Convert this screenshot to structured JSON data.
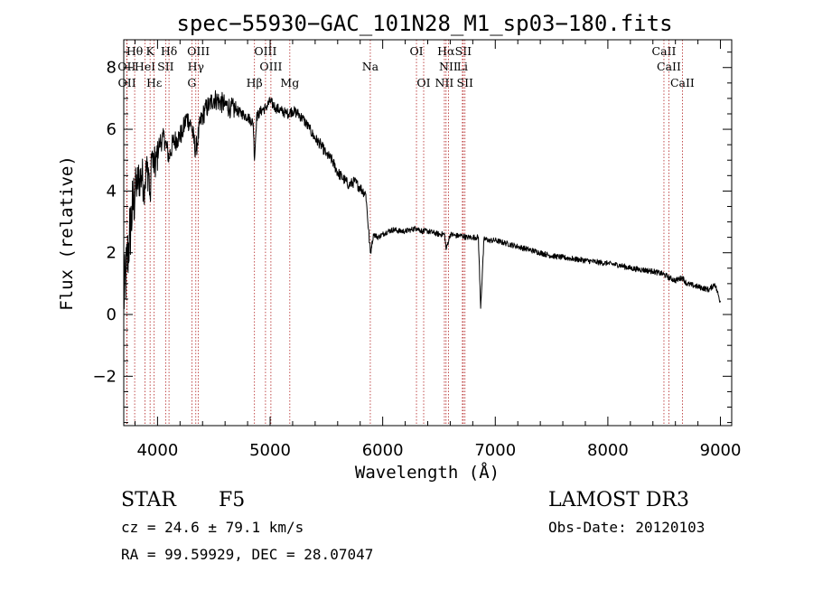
{
  "chart_data": {
    "type": "line",
    "title": "spec−55930−GAC_101N28_M1_sp03−180.fits",
    "xlabel": "Wavelength (Å)",
    "ylabel": "Flux (relative)",
    "xlim": [
      3700,
      9100
    ],
    "ylim": [
      -3.6,
      8.9
    ],
    "xticks": [
      4000,
      5000,
      6000,
      7000,
      8000,
      9000
    ],
    "xtick_labels": [
      "4000",
      "5000",
      "6000",
      "7000",
      "8000",
      "9000"
    ],
    "yticks": [
      -2,
      0,
      2,
      4,
      6,
      8
    ],
    "ytick_labels": [
      "−2",
      "0",
      "2",
      "4",
      "6",
      "8"
    ],
    "series": [
      {
        "name": "flux",
        "x": [
          3700,
          3750,
          3780,
          3800,
          3820,
          3840,
          3860,
          3880,
          3900,
          3920,
          3934,
          3950,
          3968,
          3990,
          4020,
          4060,
          4102,
          4140,
          4180,
          4220,
          4260,
          4300,
          4340,
          4380,
          4420,
          4460,
          4500,
          4550,
          4600,
          4650,
          4700,
          4750,
          4800,
          4850,
          4861,
          4880,
          4920,
          4960,
          5000,
          5050,
          5100,
          5150,
          5200,
          5250,
          5300,
          5350,
          5400,
          5450,
          5500,
          5550,
          5600,
          5650,
          5700,
          5750,
          5800,
          5850,
          5890,
          5920,
          5960,
          6000,
          6050,
          6100,
          6150,
          6200,
          6250,
          6300,
          6350,
          6400,
          6450,
          6500,
          6550,
          6563,
          6600,
          6650,
          6700,
          6750,
          6800,
          6850,
          6870,
          6900,
          6950,
          7000,
          7100,
          7200,
          7300,
          7400,
          7500,
          7600,
          7700,
          7800,
          7900,
          8000,
          8100,
          8200,
          8300,
          8400,
          8498,
          8542,
          8600,
          8662,
          8700,
          8800,
          8900,
          8950,
          9000
        ],
        "y": [
          0.5,
          2.5,
          3.5,
          4.0,
          4.3,
          4.4,
          4.5,
          4.2,
          4.6,
          4.7,
          3.8,
          5.2,
          4.6,
          5.1,
          5.6,
          5.7,
          5.1,
          5.6,
          5.7,
          5.9,
          6.4,
          6.1,
          5.3,
          6.2,
          6.6,
          6.8,
          7.0,
          6.9,
          6.8,
          6.7,
          6.6,
          6.5,
          6.4,
          6.2,
          5.0,
          6.4,
          6.6,
          6.7,
          6.9,
          6.7,
          6.6,
          6.5,
          6.6,
          6.5,
          6.3,
          6.0,
          5.7,
          5.5,
          5.2,
          5.0,
          4.6,
          4.4,
          4.2,
          4.3,
          4.1,
          3.9,
          2.0,
          2.6,
          2.5,
          2.6,
          2.7,
          2.75,
          2.7,
          2.7,
          2.75,
          2.8,
          2.7,
          2.7,
          2.65,
          2.6,
          2.6,
          2.1,
          2.6,
          2.55,
          2.55,
          2.5,
          2.5,
          2.5,
          0.2,
          2.45,
          2.4,
          2.4,
          2.3,
          2.2,
          2.1,
          2.0,
          1.9,
          1.85,
          1.8,
          1.75,
          1.7,
          1.65,
          1.6,
          1.5,
          1.45,
          1.4,
          1.3,
          1.2,
          1.1,
          1.2,
          1.0,
          0.9,
          0.8,
          1.0,
          0.4
        ]
      }
    ],
    "spectral_lines": [
      {
        "label": "Hθ",
        "x": 3797,
        "row": 0
      },
      {
        "label": "K",
        "x": 3934,
        "row": 0
      },
      {
        "label": "Hδ",
        "x": 4102,
        "row": 0
      },
      {
        "label": "OIII",
        "x": 4363,
        "row": 0
      },
      {
        "label": "OIII",
        "x": 4959,
        "row": 0
      },
      {
        "label": "OI",
        "x": 6300,
        "row": 0
      },
      {
        "label": "Hα",
        "x": 6563,
        "row": 0
      },
      {
        "label": "SII",
        "x": 6716,
        "row": 0
      },
      {
        "label": "CaII",
        "x": 8498,
        "row": 0
      },
      {
        "label": "OII",
        "x": 3727,
        "row": 1
      },
      {
        "label": "HeI",
        "x": 3889,
        "row": 1
      },
      {
        "label": "SII",
        "x": 4072,
        "row": 1
      },
      {
        "label": "Hγ",
        "x": 4340,
        "row": 1
      },
      {
        "label": "OIII",
        "x": 5007,
        "row": 1
      },
      {
        "label": "Na",
        "x": 5890,
        "row": 1
      },
      {
        "label": "NII",
        "x": 6584,
        "row": 1
      },
      {
        "label": "Li",
        "x": 6708,
        "row": 1
      },
      {
        "label": "CaII",
        "x": 8542,
        "row": 1
      },
      {
        "label": "OII",
        "x": 3729,
        "row": 2
      },
      {
        "label": "Hε",
        "x": 3970,
        "row": 2
      },
      {
        "label": "G",
        "x": 4305,
        "row": 2
      },
      {
        "label": "Hβ",
        "x": 4861,
        "row": 2
      },
      {
        "label": "Mg",
        "x": 5175,
        "row": 2
      },
      {
        "label": "OI",
        "x": 6364,
        "row": 2
      },
      {
        "label": "NII",
        "x": 6548,
        "row": 2
      },
      {
        "label": "SII",
        "x": 6731,
        "row": 2
      },
      {
        "label": "CaII",
        "x": 8662,
        "row": 2
      }
    ],
    "line_color": "#000000",
    "marker_color": "#b22222"
  },
  "info": {
    "object_class": "STAR",
    "subclass": "F5",
    "survey": "LAMOST DR3",
    "cz": "cz = 24.6 ± 79.1 km/s",
    "obs_date": "Obs-Date: 20120103",
    "coords": "RA =  99.59929, DEC =  28.07047"
  }
}
